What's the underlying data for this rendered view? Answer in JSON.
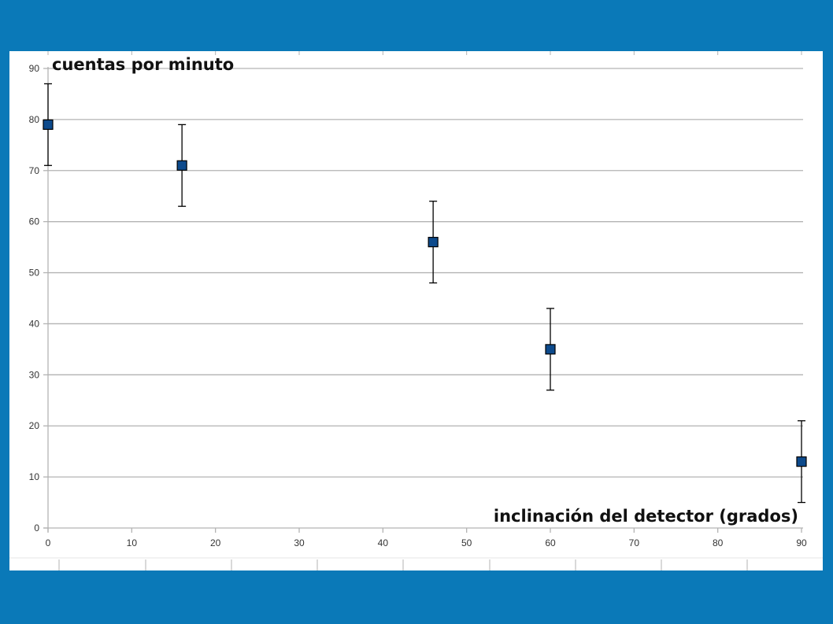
{
  "chart_data": {
    "type": "scatter",
    "ylabel": "cuentas por minuto",
    "xlabel": "inclinación del detector (grados)",
    "xlim": [
      0,
      90
    ],
    "ylim": [
      0,
      90
    ],
    "x_ticks": [
      0,
      10,
      20,
      30,
      40,
      50,
      60,
      70,
      80,
      90
    ],
    "y_ticks": [
      0,
      10,
      20,
      30,
      40,
      50,
      60,
      70,
      80,
      90
    ],
    "grid": "horizontal",
    "legend": "none",
    "series": [
      {
        "points": [
          {
            "x": 0,
            "y": 79,
            "err": 8
          },
          {
            "x": 16,
            "y": 71,
            "err": 8
          },
          {
            "x": 46,
            "y": 56,
            "err": 8
          },
          {
            "x": 60,
            "y": 35,
            "err": 8
          },
          {
            "x": 90,
            "y": 13,
            "err": 8
          }
        ],
        "marker": "square",
        "color": "#0d4a8c"
      }
    ]
  },
  "colors": {
    "background": "#0a79b8",
    "plot_area": "#ffffff",
    "gridline": "#b3b3b3",
    "marker_fill": "#0d4a8c",
    "marker_edge": "#000000"
  }
}
